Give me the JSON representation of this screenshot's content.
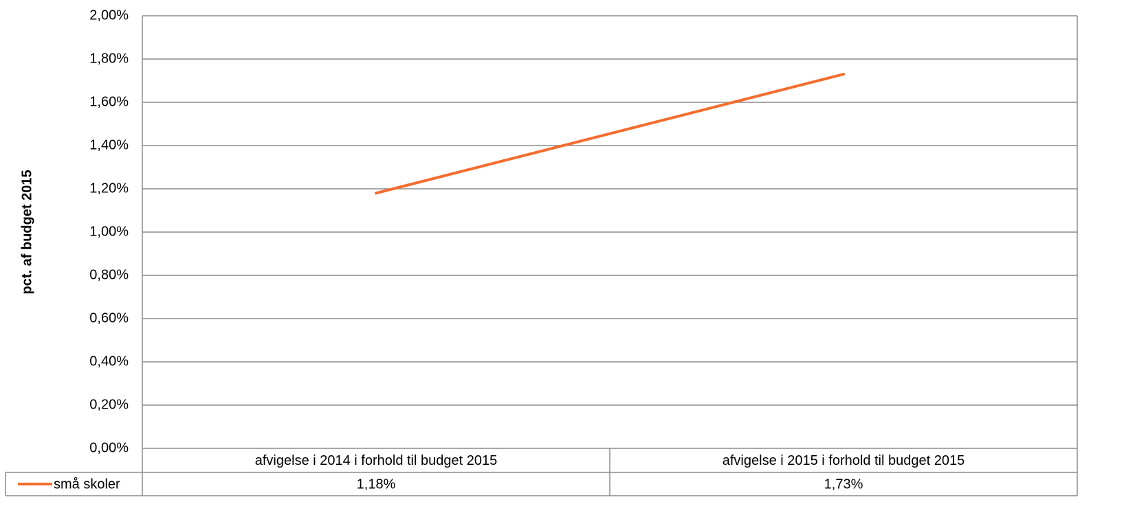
{
  "chart_data": {
    "type": "line",
    "y_label": "pct. af budget 2015",
    "categories": [
      "afvigelse i 2014 i forhold til budget 2015",
      "afvigelse i 2015 i forhold til budget 2015"
    ],
    "series": [
      {
        "name": "små skoler",
        "color": "#f46d2e",
        "values": [
          1.18,
          1.73
        ],
        "value_labels": [
          "1,18%",
          "1,73%"
        ]
      }
    ],
    "ylim": [
      0,
      2
    ],
    "yticks": [
      {
        "value": 0,
        "label": "0,00%"
      },
      {
        "value": 0.2,
        "label": "0,20%"
      },
      {
        "value": 0.4,
        "label": "0,40%"
      },
      {
        "value": 0.6,
        "label": "0,60%"
      },
      {
        "value": 0.8,
        "label": "0,80%"
      },
      {
        "value": 1.0,
        "label": "1,00%"
      },
      {
        "value": 1.2,
        "label": "1,20%"
      },
      {
        "value": 1.4,
        "label": "1,40%"
      },
      {
        "value": 1.6,
        "label": "1,60%"
      },
      {
        "value": 1.8,
        "label": "1,80%"
      },
      {
        "value": 2.0,
        "label": "2,00%"
      }
    ],
    "grid": true
  }
}
